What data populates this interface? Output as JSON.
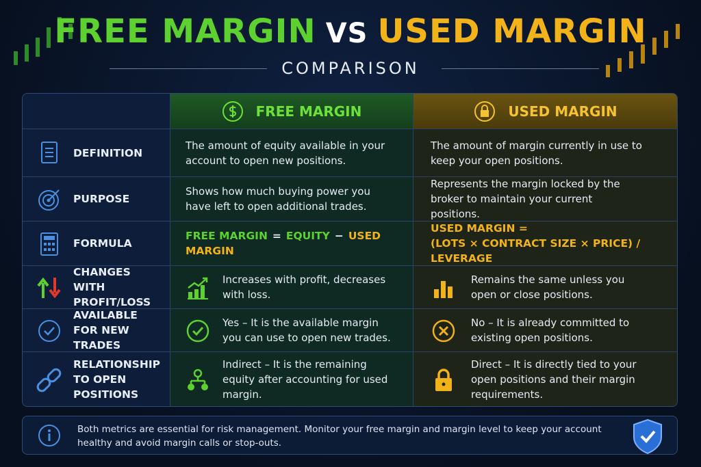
{
  "header": {
    "title_left": "FREE MARGIN",
    "title_vs": "VS",
    "title_right": "USED MARGIN",
    "subtitle": "COMPARISON"
  },
  "table": {
    "columns": [
      "FREE MARGIN",
      "USED MARGIN"
    ],
    "rows": [
      {
        "label": "DEFINITION",
        "free": "The amount of equity available in your account to open new positions.",
        "used": "The amount of margin currently in use to keep your open positions."
      },
      {
        "label": "PURPOSE",
        "free": "Shows how much buying power you have left to open additional trades.",
        "used": "Represents the margin locked by the broker to maintain your current positions."
      },
      {
        "label": "FORMULA",
        "free": [
          "FREE MARGIN",
          "=",
          "EQUITY",
          "−",
          "USED MARGIN"
        ],
        "used": [
          "USED MARGIN =",
          "(LOTS × CONTRACT SIZE × PRICE) / LEVERAGE"
        ]
      },
      {
        "label": "CHANGES WITH PROFIT/LOSS",
        "free": "Increases with profit, decreases with loss.",
        "used": "Remains the same unless you open or close positions."
      },
      {
        "label": "AVAILABLE FOR NEW TRADES",
        "free": "Yes – It is the available margin you can use to open new trades.",
        "used": "No – It is already committed to existing open positions."
      },
      {
        "label": "RELATIONSHIP TO OPEN POSITIONS",
        "free": "Indirect – It is the remaining equity after accounting for used margin.",
        "used": "Direct – It is directly tied to your open positions and their margin requirements."
      }
    ]
  },
  "footer": {
    "note": "Both metrics are essential for risk management. Monitor your free margin and margin level to keep your account healthy and avoid margin calls or stop-outs."
  }
}
